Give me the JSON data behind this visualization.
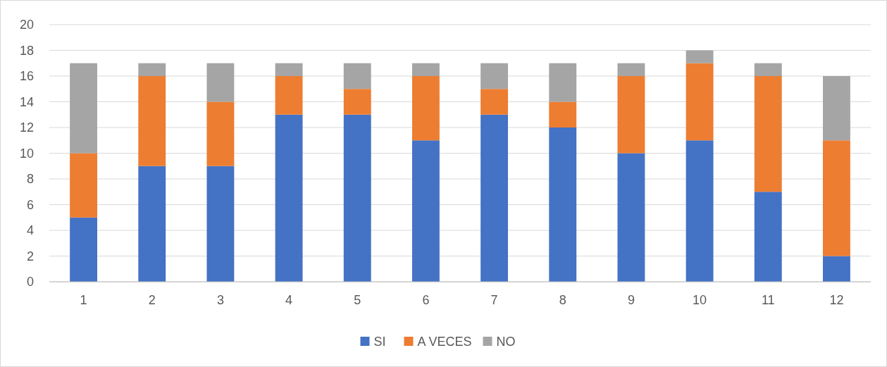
{
  "chart_data": {
    "type": "bar",
    "stacked": true,
    "categories": [
      "1",
      "2",
      "3",
      "4",
      "5",
      "6",
      "7",
      "8",
      "9",
      "10",
      "11",
      "12"
    ],
    "series": [
      {
        "name": "SI",
        "color": "#4472c4",
        "values": [
          5,
          9,
          9,
          13,
          13,
          11,
          13,
          12,
          10,
          11,
          7,
          2
        ]
      },
      {
        "name": "A VECES",
        "color": "#ed7d31",
        "values": [
          5,
          7,
          5,
          3,
          2,
          5,
          2,
          2,
          6,
          6,
          9,
          9
        ]
      },
      {
        "name": "NO",
        "color": "#a5a5a5",
        "values": [
          7,
          1,
          3,
          1,
          2,
          1,
          2,
          3,
          1,
          1,
          1,
          5
        ]
      }
    ],
    "ylim": [
      0,
      20
    ],
    "yticks": [
      0,
      2,
      4,
      6,
      8,
      10,
      12,
      14,
      16,
      18,
      20
    ],
    "grid": "y",
    "legend": "bottom"
  }
}
